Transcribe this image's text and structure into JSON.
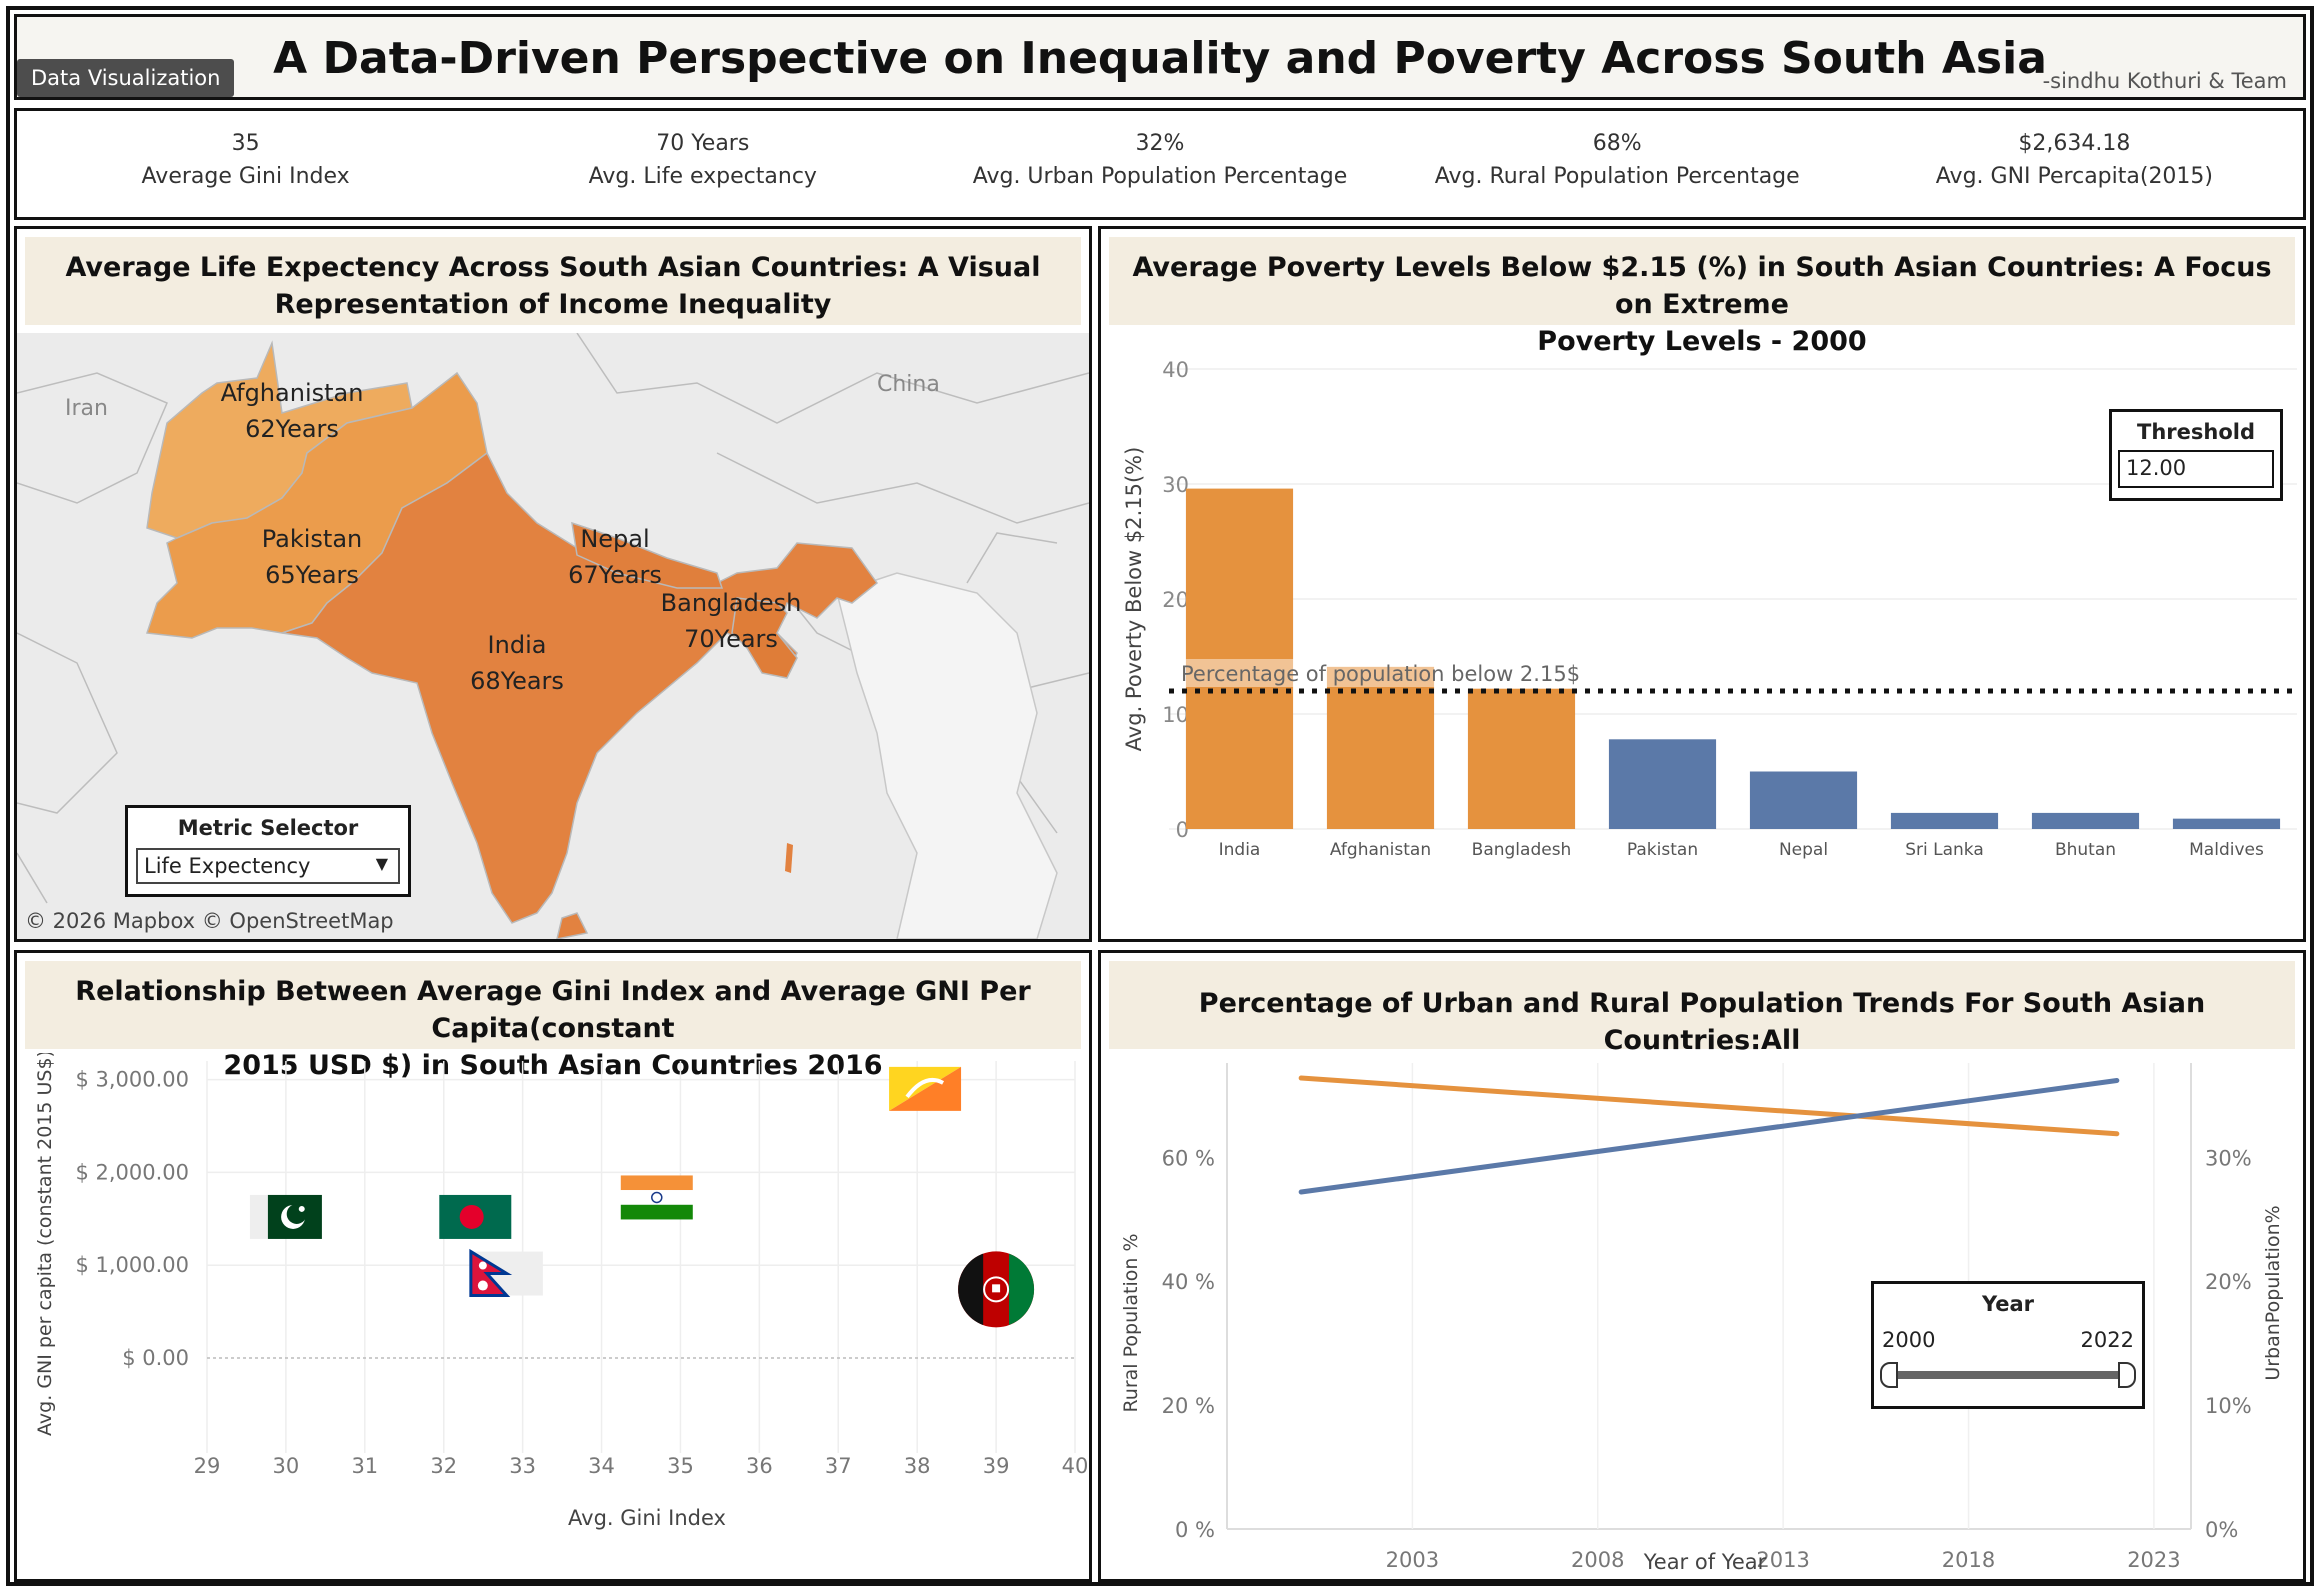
{
  "header": {
    "tag": "Data Visualization",
    "title": "A Data-Driven Perspective on Inequality and Poverty Across South Asia",
    "byline": "-sindhu Kothuri & Team"
  },
  "kpis": [
    {
      "value": "35",
      "label": "Average Gini Index"
    },
    {
      "value": "70 Years",
      "label": "Avg. Life expectancy"
    },
    {
      "value": "32%",
      "label": "Avg. Urban Population Percentage"
    },
    {
      "value": "68%",
      "label": "Avg. Rural Population Percentage"
    },
    {
      "value": "$2,634.18",
      "label": "Avg. GNI Percapita(2015)"
    }
  ],
  "map": {
    "title_line1": "Average Life Expectency Across South Asian Countries: A Visual",
    "title_line2": "Representation of Income Inequality",
    "labels": [
      {
        "name": "Afghanistan",
        "years": "62Years"
      },
      {
        "name": "Pakistan",
        "years": "65Years"
      },
      {
        "name": "Nepal",
        "years": "67Years"
      },
      {
        "name": "Bangladesh",
        "years": "70Years"
      },
      {
        "name": "India",
        "years": "68Years"
      }
    ],
    "background_labels": {
      "iran": "Iran",
      "china": "China"
    },
    "attribution": "© 2026 Mapbox  © OpenStreetMap",
    "metric_selector": {
      "title": "Metric Selector",
      "value": "Life Expectency"
    },
    "colors": {
      "land": "#e8e8e8",
      "afghanistan": "#eeab5e",
      "pakistan": "#eb9c4c",
      "india": "#e28240",
      "nepal": "#e07f3c",
      "bangladesh": "#df7d38"
    }
  },
  "bar": {
    "title_line1": "Average Poverty Levels Below $2.15 (%) in South Asian Countries: A Focus on Extreme",
    "title_line2": "Poverty Levels - 2000",
    "threshold": {
      "title": "Threshold",
      "value": "12.00"
    },
    "reference_label": "Percentage  of population below 2.15$",
    "colors": {
      "above": "#e5923e",
      "below": "#5b79a8"
    }
  },
  "scatter": {
    "title_line1": "Relationship Between Average Gini Index and Average GNI Per Capita(constant",
    "title_line2": "2015 USD $) in South Asian Countries 2016"
  },
  "line": {
    "title": "Percentage of Urban and Rural Population Trends For South Asian Countries:All",
    "year_filter": {
      "title": "Year",
      "min": "2000",
      "max": "2022"
    },
    "colors": {
      "rural": "#e5923e",
      "urban": "#5b79a8"
    }
  },
  "chart_data": [
    {
      "type": "bar",
      "categories": [
        "India",
        "Afghanistan",
        "Bangladesh",
        "Pakistan",
        "Nepal",
        "Sri Lanka",
        "Bhutan",
        "Maldives"
      ],
      "values": [
        29.6,
        14.1,
        12.2,
        7.8,
        5.0,
        1.4,
        1.4,
        0.9
      ],
      "ylabel": "Avg. Poverty Below $2.15(%)",
      "ylim": [
        0,
        40
      ],
      "yticks": [
        0,
        10,
        20,
        30,
        40
      ],
      "reference_line": 12.0
    },
    {
      "type": "scatter",
      "points": [
        {
          "country": "Pakistan",
          "x": 30.0,
          "y": 1520
        },
        {
          "country": "Bangladesh",
          "x": 32.4,
          "y": 1520
        },
        {
          "country": "India",
          "x": 34.7,
          "y": 1730
        },
        {
          "country": "Nepal",
          "x": 32.8,
          "y": 910
        },
        {
          "country": "Bhutan",
          "x": 38.1,
          "y": 2900
        },
        {
          "country": "Afghanistan",
          "x": 39.0,
          "y": 740
        }
      ],
      "xlabel": "Avg. Gini Index",
      "ylabel": "Avg. GNI per capita (constant 2015 US$)",
      "xlim": [
        29,
        40
      ],
      "xticks": [
        "29",
        "30",
        "31",
        "32",
        "33",
        "34",
        "35",
        "36",
        "37",
        "38",
        "39",
        "40"
      ],
      "ylim": [
        -700,
        3200
      ],
      "yticks": [
        0,
        1000,
        2000,
        3000
      ],
      "ytick_labels": [
        "$ 0.00",
        "$ 1,000.00",
        "$ 2,000.00",
        "$ 3,000.00"
      ]
    },
    {
      "type": "line",
      "x": [
        2000,
        2022
      ],
      "xlim": [
        1998,
        2024
      ],
      "xticks": [
        "2003",
        "2008",
        "2013",
        "2018",
        "2023"
      ],
      "xlabel": "Year of Year",
      "series": [
        {
          "name": "Rural Population %",
          "axis": "left",
          "values": [
            72.8,
            63.8
          ]
        },
        {
          "name": "UrbanPopulation%",
          "axis": "right",
          "values": [
            27.2,
            36.2
          ]
        }
      ],
      "y_left": {
        "label": "Rural Population %",
        "lim": [
          0,
          72
        ],
        "ticks": [
          "0 %",
          "20 %",
          "40 %",
          "60 %"
        ]
      },
      "y_right": {
        "label": "UrbanPopulation%",
        "lim": [
          0,
          36
        ],
        "ticks": [
          "0%",
          "10%",
          "20%",
          "30%"
        ]
      }
    }
  ]
}
